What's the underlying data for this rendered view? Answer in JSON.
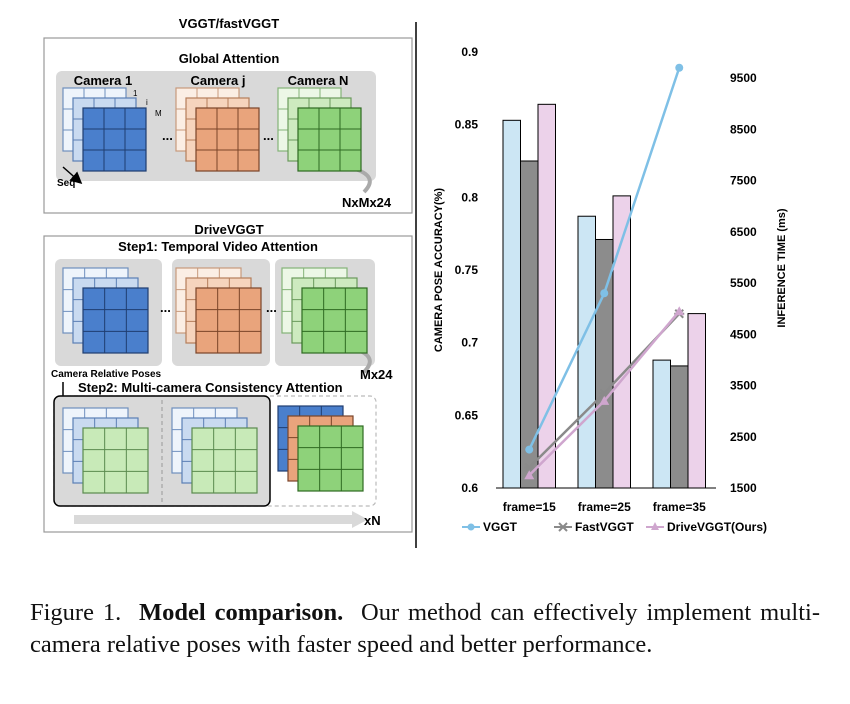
{
  "diagram": {
    "top_title": "VGGT/fastVGGT",
    "top_box_title": "Global Attention",
    "camera_labels": [
      "Camera 1",
      "Camera j",
      "Camera N"
    ],
    "top_dims": "NxMx24",
    "seq_label": "Seq",
    "axis_i": "i",
    "axis_1": "1",
    "axis_m": "M",
    "bottom_title": "DriveVGGT",
    "step1_title": "Step1: Temporal Video Attention",
    "step1_dims": "Mx24",
    "camera_relative_label": "Camera Relative Poses",
    "step2_title": "Step2:  Multi-camera Consistency Attention",
    "step2_dims": "xN",
    "ellipsis": "..."
  },
  "chart_data": {
    "type": "bar+line",
    "categories": [
      "frame=15",
      "frame=25",
      "frame=35"
    ],
    "ylabel_left": "CAMERA POSE ACCURACY(%)",
    "ylabel_right": "INFERENCE TIME (ms)",
    "ylim_left": [
      0.6,
      0.9
    ],
    "ylim_right": [
      1500,
      10000
    ],
    "left_ticks": [
      "0.9",
      "0.85",
      "0.8",
      "0.75",
      "0.7",
      "0.65",
      "0.6"
    ],
    "right_ticks": [
      "9500",
      "8500",
      "7500",
      "6500",
      "5500",
      "4500",
      "3500",
      "2500",
      "1500"
    ],
    "series": [
      {
        "name": "VGGT",
        "accuracy": [
          0.853,
          0.787,
          0.688
        ],
        "time": [
          2250,
          5300,
          9700
        ],
        "bar_color": "#cce6f4",
        "line_color": "#7fc0e6",
        "marker": "circle"
      },
      {
        "name": "FastVGGT",
        "accuracy": [
          0.825,
          0.771,
          0.684
        ],
        "time": [
          1900,
          3350,
          4900
        ],
        "bar_color": "#8c8c8c",
        "line_color": "#8a8a8a",
        "marker": "star"
      },
      {
        "name": "DriveVGGT(Ours)",
        "accuracy": [
          0.864,
          0.801,
          0.72
        ],
        "time": [
          1750,
          3200,
          4950
        ],
        "bar_color": "#ecd2ea",
        "line_color": "#cfa6ce",
        "marker": "triangle"
      }
    ]
  },
  "caption": {
    "label": "Figure 1.",
    "bold": "Model comparison.",
    "text": "Our method can effectively implement multi-camera relative poses with faster speed and better performance."
  }
}
